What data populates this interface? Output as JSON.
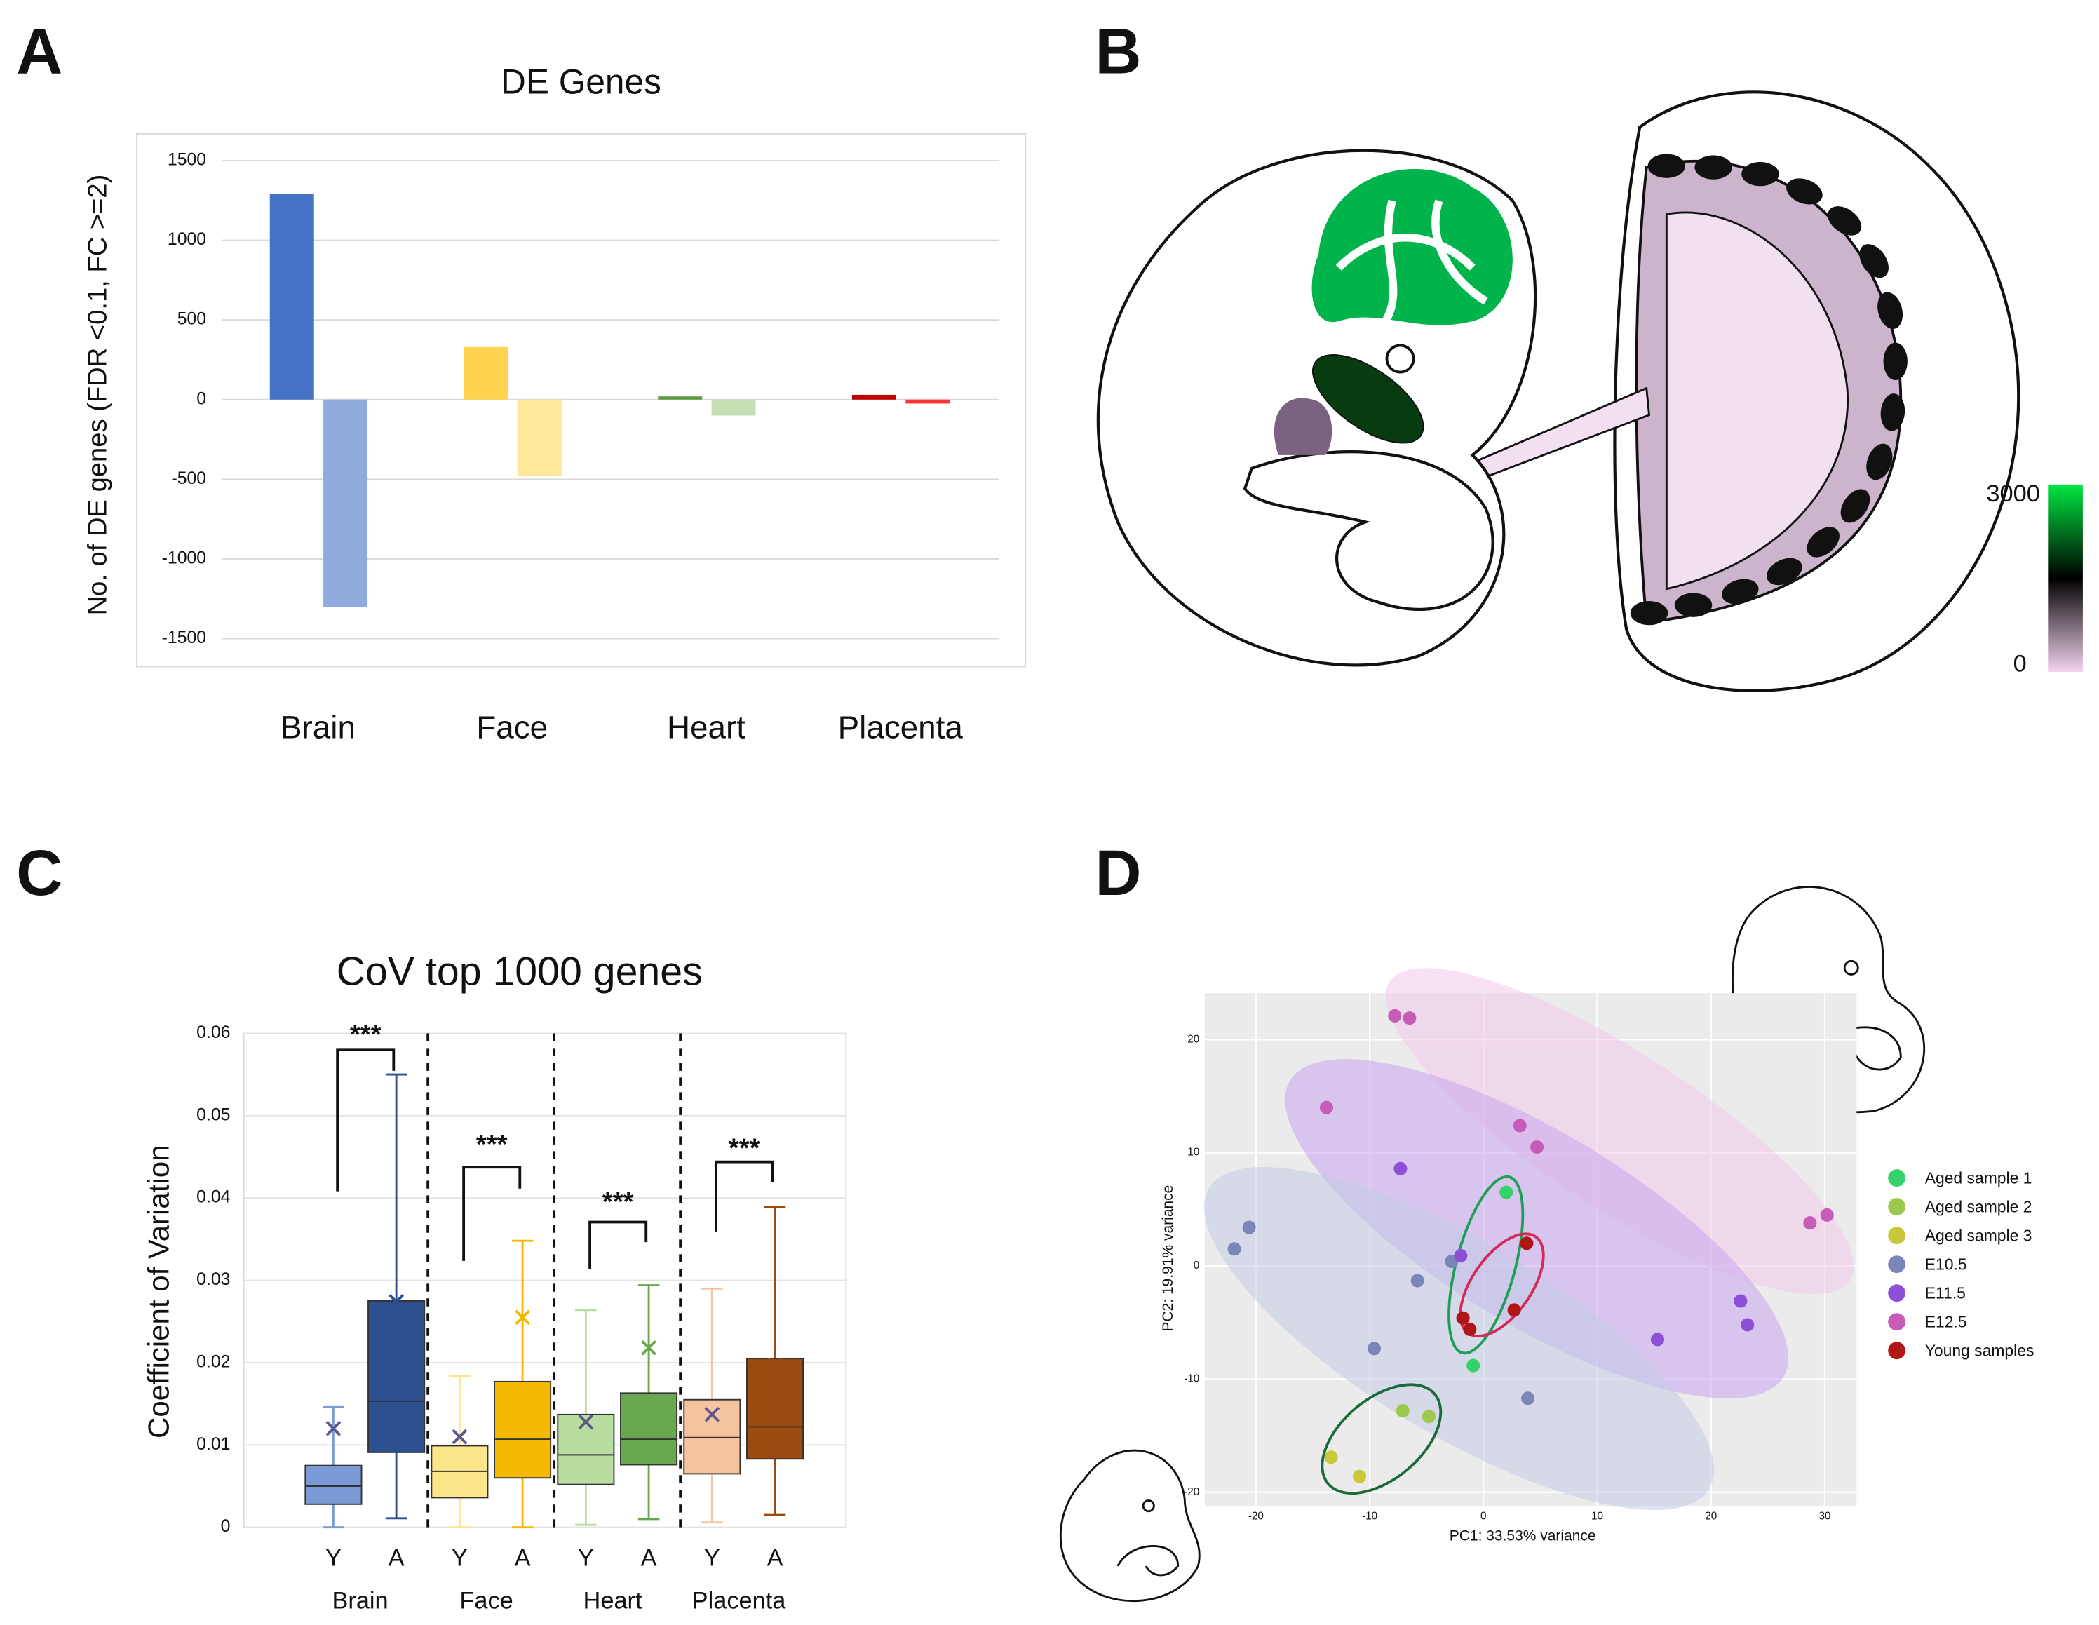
{
  "panel_b": {
    "panel": "B",
    "colorbar_ticks": [
      3000,
      0
    ]
  },
  "chart_data": [
    {
      "panel": "A",
      "type": "bar",
      "title": "DE Genes",
      "ylabel": "No. of DE genes (FDR <0.1, FC >=2)",
      "categories": [
        "Brain",
        "Face",
        "Heart",
        "Placenta"
      ],
      "series": [
        {
          "colors": [
            "#4472c4",
            "#ffd34f",
            "#5b9a3c",
            "#c00000"
          ],
          "values": [
            1290,
            330,
            20,
            30
          ]
        },
        {
          "colors": [
            "#8faadc",
            "#ffe699",
            "#c5e0b4",
            "#ff3333"
          ],
          "values": [
            -1300,
            -480,
            -100,
            -25
          ]
        }
      ],
      "ylim": [
        -1676,
        1668
      ],
      "yticks": [
        -1500,
        -1000,
        -500,
        0,
        500,
        1000,
        1500
      ],
      "grid": true
    },
    {
      "panel": "C",
      "type": "box",
      "title": "CoV top 1000 genes",
      "ylabel": "Coefficient of Variation",
      "categories": [
        "Y",
        "A",
        "Y",
        "A",
        "Y",
        "A",
        "Y",
        "A"
      ],
      "groups": [
        "Brain",
        "Face",
        "Heart",
        "Placenta"
      ],
      "boxes": [
        {
          "min": 0,
          "q1": 0.0028,
          "median": 0.005,
          "q3": 0.0075,
          "max": 0.0146,
          "mean": 0.012,
          "color": "#7b9bd6"
        },
        {
          "min": 0.0011,
          "q1": 0.0091,
          "median": 0.0153,
          "q3": 0.0275,
          "max": 0.055,
          "mean": 0.0274,
          "color": "#2b4f8f"
        },
        {
          "min": 0,
          "q1": 0.0036,
          "median": 0.0068,
          "q3": 0.0099,
          "max": 0.0184,
          "mean": 0.011,
          "color": "#fde68a"
        },
        {
          "min": 0,
          "q1": 0.006,
          "median": 0.0107,
          "q3": 0.0177,
          "max": 0.0348,
          "mean": 0.0255,
          "color": "#f5b800"
        },
        {
          "min": 0.0003,
          "q1": 0.0052,
          "median": 0.0088,
          "q3": 0.0137,
          "max": 0.0264,
          "mean": 0.0128,
          "color": "#b9dca0"
        },
        {
          "min": 0.001,
          "q1": 0.0076,
          "median": 0.0107,
          "q3": 0.0163,
          "max": 0.0294,
          "mean": 0.0218,
          "color": "#6aa84f"
        },
        {
          "min": 0.0006,
          "q1": 0.0065,
          "median": 0.0109,
          "q3": 0.0155,
          "max": 0.029,
          "mean": 0.0137,
          "color": "#f6c3a0"
        },
        {
          "min": 0.0015,
          "q1": 0.0083,
          "median": 0.0122,
          "q3": 0.0205,
          "max": 0.0389,
          "mean": 0.0197,
          "color": "#9b4a10"
        }
      ],
      "annotations": [
        "***",
        "***",
        "***",
        "***"
      ],
      "ylim": [
        0,
        0.06
      ],
      "yticks": [
        0,
        0.01,
        0.02,
        0.03,
        0.04,
        0.05,
        0.06
      ],
      "grid": true
    },
    {
      "panel": "D",
      "type": "scatter",
      "xlabel": "PC1: 33.53% variance",
      "ylabel": "PC2: 19.91% variance",
      "series": [
        {
          "name": "Aged sample 1",
          "color": "#35d16a",
          "x": [
            2,
            -0.9
          ],
          "y": [
            6.5,
            -8.8
          ]
        },
        {
          "name": "Aged sample 2",
          "color": "#9cc84d",
          "x": [
            -7.1,
            -4.8
          ],
          "y": [
            -12.8,
            -13.3
          ]
        },
        {
          "name": "Aged sample 3",
          "color": "#c8c83a",
          "x": [
            -13.4,
            -10.9
          ],
          "y": [
            -16.9,
            -18.6
          ]
        },
        {
          "name": "E10.5",
          "color": "#7a86b8",
          "x": [
            -21.9,
            -20.6,
            -5.8,
            -2.8,
            -9.6,
            3.9
          ],
          "y": [
            1.5,
            3.4,
            -1.3,
            0.4,
            -7.3,
            -11.7
          ]
        },
        {
          "name": "E11.5",
          "color": "#8e4fd8",
          "x": [
            -7.3,
            -2,
            22.6,
            23.2,
            15.3
          ],
          "y": [
            8.6,
            0.9,
            -3.1,
            -5.2,
            -6.5
          ]
        },
        {
          "name": "E12.5",
          "color": "#c65bb8",
          "x": [
            -7.8,
            -6.5,
            -13.8,
            3.2,
            4.7,
            28.7,
            30.2
          ],
          "y": [
            22.1,
            21.9,
            14,
            12.4,
            10.5,
            3.8,
            4.5
          ]
        },
        {
          "name": "Young samples",
          "color": "#b01616",
          "x": [
            3.8,
            -1.8,
            2.7,
            -1.2
          ],
          "y": [
            2,
            -4.6,
            -3.9,
            -5.6
          ]
        }
      ],
      "xlim": [
        -24.5,
        32.8
      ],
      "ylim": [
        -21.2,
        24.1
      ],
      "xticks": [
        -20,
        -10,
        0,
        10,
        20,
        30
      ],
      "yticks": [
        -20,
        -10,
        0,
        10,
        20
      ],
      "grid": true
    }
  ]
}
